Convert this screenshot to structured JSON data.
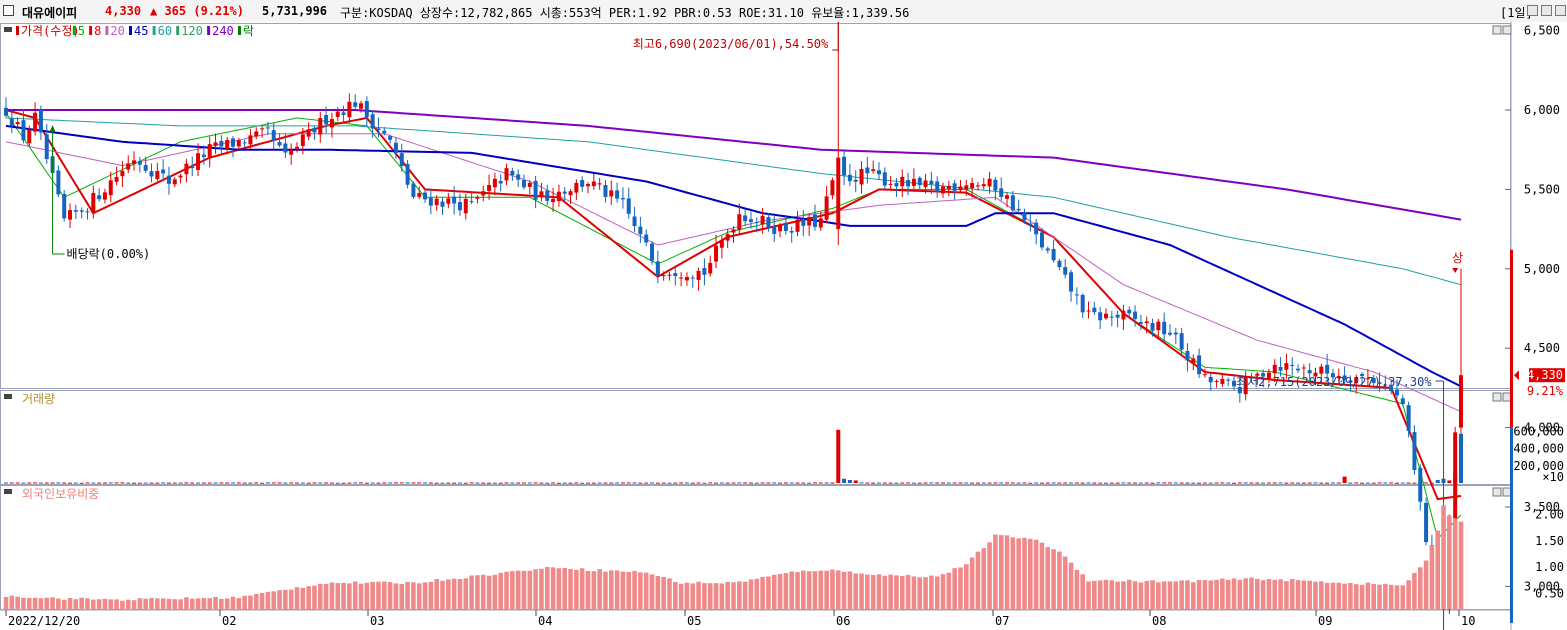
{
  "header": {
    "name": "대유에이피",
    "price": "4,330",
    "change": "▲ 365 (9.21%)",
    "volume": "5,731,996",
    "info": "구분:KOSDAQ 상장수:12,782,865 시총:553억 PER:1.92 PBR:0.53 ROE:31.10 유보율:1,339.56",
    "period": "[1일]",
    "colors": {
      "up": "#e00000",
      "text": "#000000"
    }
  },
  "legend": {
    "items": [
      {
        "label": "가격(수정)",
        "color": "#d00000"
      },
      {
        "label": "5",
        "color": "#00b000"
      },
      {
        "label": "8",
        "color": "#e00000"
      },
      {
        "label": "20",
        "color": "#c060c0"
      },
      {
        "label": "45",
        "color": "#0000c0"
      },
      {
        "label": "60",
        "color": "#20a0a0"
      },
      {
        "label": "120",
        "color": "#30a060"
      },
      {
        "label": "240",
        "color": "#8000c0"
      },
      {
        "label": "락",
        "color": "#008000"
      }
    ]
  },
  "annotations": {
    "high": "최고6,690(2023/06/01),54.50%",
    "low": "최저2,715(2023/09/27),37.30%",
    "dividend": "배당락(0.00%)",
    "limit_up": "상",
    "price_tag": "4,330",
    "pct_tag": "9.21%"
  },
  "volume_panel": {
    "title": "거래량",
    "unit": "×10"
  },
  "foreign_panel": {
    "title": "외국인보유비중"
  },
  "chart_data": [
    {
      "type": "candlestick",
      "title": "가격(수정)",
      "y_ticks": [
        "6,500",
        "6,000",
        "5,500",
        "5,000",
        "4,500",
        "4,000",
        "3,500",
        "3,000"
      ],
      "x_ticks": [
        "2022/12/20",
        "02",
        "03",
        "04",
        "05",
        "06",
        "07",
        "08",
        "09",
        "10"
      ],
      "anchors": [
        {
          "m": 0,
          "p": 6000
        },
        {
          "m": 3,
          "p": 5830
        },
        {
          "m": 5,
          "p": 5950
        },
        {
          "m": 10,
          "p": 5300
        },
        {
          "m": 14,
          "p": 5400
        },
        {
          "m": 22,
          "p": 5700
        },
        {
          "m": 28,
          "p": 5550
        },
        {
          "m": 35,
          "p": 5750
        },
        {
          "m": 45,
          "p": 5850
        },
        {
          "m": 48,
          "p": 5700
        },
        {
          "m": 55,
          "p": 5950
        },
        {
          "m": 60,
          "p": 6050
        },
        {
          "m": 66,
          "p": 5800
        },
        {
          "m": 70,
          "p": 5450
        },
        {
          "m": 80,
          "p": 5400
        },
        {
          "m": 86,
          "p": 5600
        },
        {
          "m": 92,
          "p": 5450
        },
        {
          "m": 100,
          "p": 5550
        },
        {
          "m": 106,
          "p": 5400
        },
        {
          "m": 112,
          "p": 5000
        },
        {
          "m": 120,
          "p": 4980
        },
        {
          "m": 126,
          "p": 5350
        },
        {
          "m": 133,
          "p": 5250
        },
        {
          "m": 140,
          "p": 5300
        },
        {
          "m": 142,
          "p": 5550
        },
        {
          "m": 148,
          "p": 5600
        },
        {
          "m": 152,
          "p": 5550
        },
        {
          "m": 160,
          "p": 5500
        },
        {
          "m": 165,
          "p": 5550
        },
        {
          "m": 170,
          "p": 5520
        },
        {
          "m": 173,
          "p": 5400
        },
        {
          "m": 178,
          "p": 5150
        },
        {
          "m": 186,
          "p": 4700
        },
        {
          "m": 192,
          "p": 4700
        },
        {
          "m": 200,
          "p": 4600
        },
        {
          "m": 206,
          "p": 4300
        },
        {
          "m": 212,
          "p": 4250
        },
        {
          "m": 218,
          "p": 4400
        },
        {
          "m": 226,
          "p": 4350
        },
        {
          "m": 236,
          "p": 4300
        },
        {
          "m": 240,
          "p": 4150
        },
        {
          "m": 244,
          "p": 3300
        },
        {
          "m": 247,
          "p": 2900
        },
        {
          "m": 249,
          "p": 3900
        },
        {
          "m": 250,
          "p": 4330
        }
      ],
      "ma": [
        {
          "name": "5",
          "color": "#00b000",
          "points": [
            [
              0,
              5980
            ],
            [
              10,
              5450
            ],
            [
              30,
              5800
            ],
            [
              50,
              5950
            ],
            [
              62,
              5900
            ],
            [
              72,
              5450
            ],
            [
              90,
              5450
            ],
            [
              112,
              5030
            ],
            [
              124,
              5230
            ],
            [
              142,
              5380
            ],
            [
              150,
              5500
            ],
            [
              165,
              5500
            ],
            [
              180,
              5200
            ],
            [
              192,
              4720
            ],
            [
              206,
              4380
            ],
            [
              218,
              4350
            ],
            [
              240,
              4150
            ],
            [
              246,
              3300
            ],
            [
              250,
              3450
            ]
          ]
        },
        {
          "name": "8",
          "color": "#e00000",
          "points": [
            [
              0,
              6000
            ],
            [
              5,
              5950
            ],
            [
              15,
              5350
            ],
            [
              35,
              5700
            ],
            [
              55,
              5900
            ],
            [
              62,
              5950
            ],
            [
              72,
              5500
            ],
            [
              95,
              5450
            ],
            [
              112,
              4950
            ],
            [
              124,
              5200
            ],
            [
              142,
              5350
            ],
            [
              150,
              5500
            ],
            [
              165,
              5480
            ],
            [
              180,
              5200
            ],
            [
              192,
              4720
            ],
            [
              206,
              4350
            ],
            [
              218,
              4300
            ],
            [
              238,
              4250
            ],
            [
              246,
              3550
            ],
            [
              250,
              3570
            ]
          ]
        },
        {
          "name": "20",
          "color": "#c060c0",
          "points": [
            [
              0,
              5800
            ],
            [
              20,
              5650
            ],
            [
              45,
              5850
            ],
            [
              65,
              5850
            ],
            [
              90,
              5550
            ],
            [
              112,
              5150
            ],
            [
              130,
              5300
            ],
            [
              150,
              5400
            ],
            [
              170,
              5450
            ],
            [
              192,
              4900
            ],
            [
              215,
              4550
            ],
            [
              235,
              4350
            ],
            [
              250,
              4100
            ]
          ]
        },
        {
          "name": "45",
          "color": "#0000c0",
          "points": [
            [
              0,
              5900
            ],
            [
              20,
              5800
            ],
            [
              40,
              5750
            ],
            [
              55,
              5750
            ],
            [
              80,
              5730
            ],
            [
              110,
              5550
            ],
            [
              130,
              5350
            ],
            [
              140,
              5300
            ],
            [
              145,
              5270
            ],
            [
              165,
              5270
            ],
            [
              170,
              5350
            ],
            [
              180,
              5350
            ],
            [
              200,
              5150
            ],
            [
              230,
              4650
            ],
            [
              245,
              4350
            ],
            [
              250,
              4260
            ]
          ]
        },
        {
          "name": "60",
          "color": "#20a0a0",
          "points": [
            [
              0,
              5950
            ],
            [
              30,
              5900
            ],
            [
              60,
              5900
            ],
            [
              100,
              5800
            ],
            [
              140,
              5600
            ],
            [
              180,
              5450
            ],
            [
              210,
              5200
            ],
            [
              240,
              5000
            ],
            [
              250,
              4900
            ]
          ]
        },
        {
          "name": "240",
          "color": "#8000c0",
          "points": [
            [
              0,
              6000
            ],
            [
              60,
              6000
            ],
            [
              100,
              5900
            ],
            [
              140,
              5750
            ],
            [
              180,
              5700
            ],
            [
              220,
              5500
            ],
            [
              250,
              5310
            ]
          ]
        }
      ]
    },
    {
      "type": "bar",
      "title": "거래량",
      "unit": "×10",
      "y_ticks": [
        "600,000",
        "400,000",
        "200,000"
      ],
      "baseline": 5000,
      "spikes": [
        {
          "m": 143,
          "v": 620000,
          "up": true
        },
        {
          "m": 144,
          "v": 50000,
          "up": false
        },
        {
          "m": 145,
          "v": 35000,
          "up": false
        },
        {
          "m": 146,
          "v": 30000,
          "up": true
        },
        {
          "m": 230,
          "v": 75000,
          "up": true
        },
        {
          "m": 246,
          "v": 35000,
          "up": false
        },
        {
          "m": 247,
          "v": 50000,
          "up": false
        },
        {
          "m": 248,
          "v": 30000,
          "up": true
        },
        {
          "m": 249,
          "v": 110000,
          "up": true
        },
        {
          "m": 250,
          "v": 573000,
          "up": false
        }
      ]
    },
    {
      "type": "bar",
      "title": "외국인보유비중",
      "y_ticks": [
        "2.00",
        "1.50",
        "1.00",
        "0.50"
      ],
      "ylim": [
        0.2,
        2.4
      ],
      "anchors": [
        [
          0,
          0.45
        ],
        [
          10,
          0.4
        ],
        [
          20,
          0.38
        ],
        [
          40,
          0.42
        ],
        [
          55,
          0.7
        ],
        [
          70,
          0.7
        ],
        [
          80,
          0.82
        ],
        [
          90,
          0.95
        ],
        [
          95,
          1.0
        ],
        [
          100,
          0.95
        ],
        [
          110,
          0.9
        ],
        [
          116,
          0.7
        ],
        [
          125,
          0.7
        ],
        [
          135,
          0.9
        ],
        [
          140,
          0.95
        ],
        [
          146,
          0.9
        ],
        [
          150,
          0.85
        ],
        [
          160,
          0.82
        ],
        [
          165,
          1.05
        ],
        [
          170,
          1.6
        ],
        [
          176,
          1.55
        ],
        [
          181,
          1.3
        ],
        [
          186,
          0.75
        ],
        [
          200,
          0.72
        ],
        [
          215,
          0.78
        ],
        [
          230,
          0.7
        ],
        [
          240,
          0.65
        ],
        [
          244,
          1.1
        ],
        [
          246,
          1.7
        ],
        [
          247,
          2.2
        ],
        [
          248,
          2.0
        ],
        [
          250,
          1.85
        ]
      ]
    }
  ]
}
